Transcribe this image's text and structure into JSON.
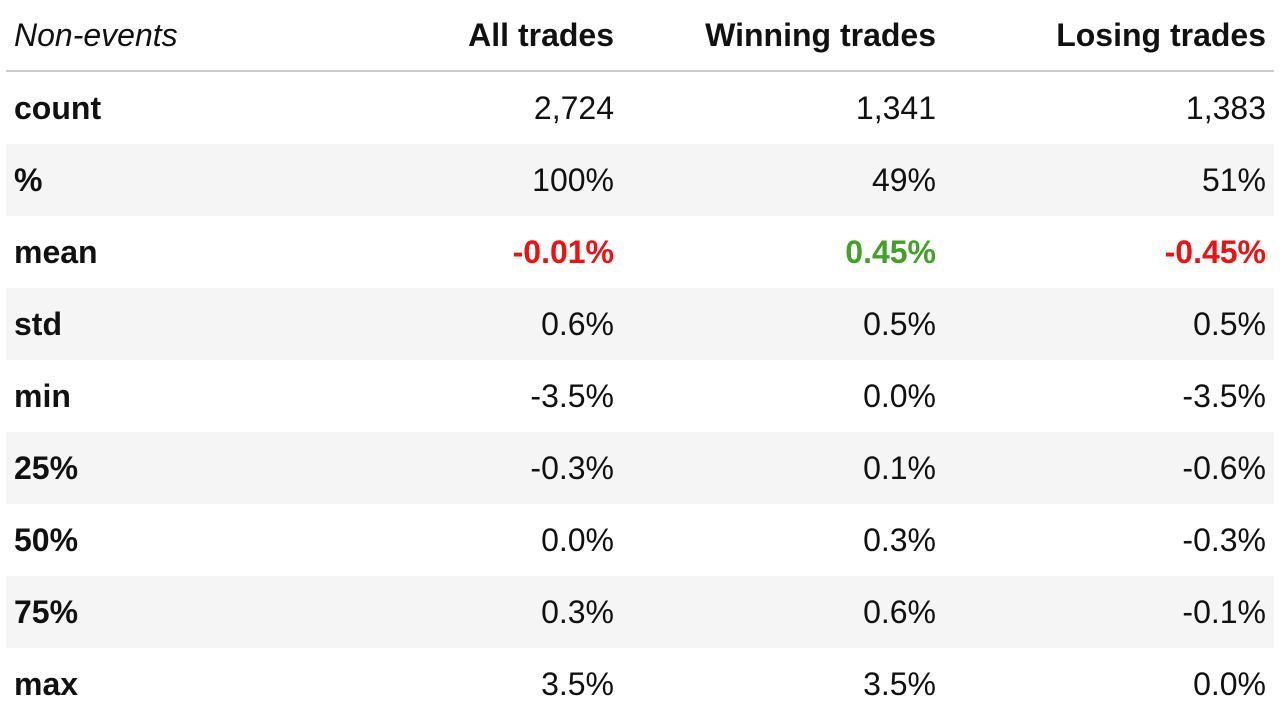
{
  "table": {
    "corner_label": "Non-events",
    "columns": [
      "All trades",
      "Winning trades",
      "Losing trades"
    ],
    "rows": [
      {
        "label": "count",
        "values": [
          "2,724",
          "1,341",
          "1,383"
        ]
      },
      {
        "label": "%",
        "values": [
          "100%",
          "49%",
          "51%"
        ]
      },
      {
        "label": "mean",
        "values": [
          "-0.01%",
          "0.45%",
          "-0.45%"
        ]
      },
      {
        "label": "std",
        "values": [
          "0.6%",
          "0.5%",
          "0.5%"
        ]
      },
      {
        "label": "min",
        "values": [
          "-3.5%",
          "0.0%",
          "-3.5%"
        ]
      },
      {
        "label": "25%",
        "values": [
          "-0.3%",
          "0.1%",
          "-0.6%"
        ]
      },
      {
        "label": "50%",
        "values": [
          "0.0%",
          "0.3%",
          "-0.3%"
        ]
      },
      {
        "label": "75%",
        "values": [
          "0.3%",
          "0.6%",
          "-0.1%"
        ]
      },
      {
        "label": "max",
        "values": [
          "3.5%",
          "3.5%",
          "0.0%"
        ]
      }
    ],
    "colors": {
      "negative_highlight": "#ee1111",
      "positive_highlight": "#44a028",
      "stripe_background": "#f5f5f5",
      "header_rule": "#cccccc"
    }
  }
}
